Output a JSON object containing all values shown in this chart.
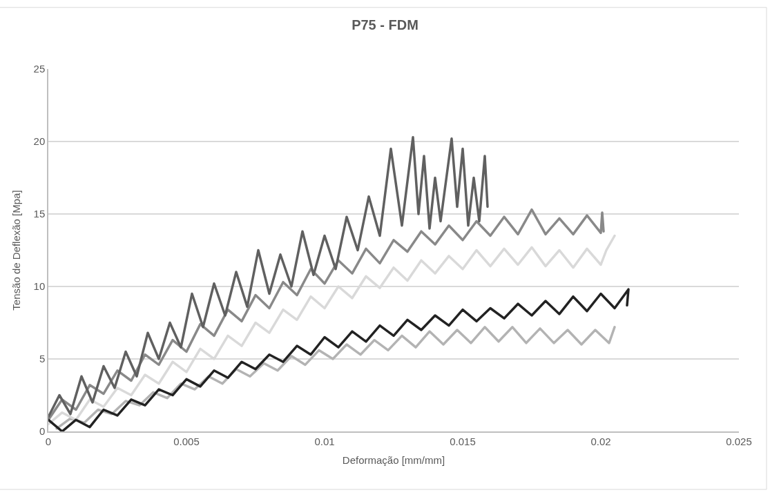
{
  "chart_data": {
    "type": "line",
    "title": "P75 - FDM",
    "xlabel": "Deformação [mm/mm]",
    "ylabel": "Tensão de Deflexão [Mpa]",
    "xlim": [
      0,
      0.025
    ],
    "xticks": [
      0,
      0.005,
      0.01,
      0.015,
      0.02,
      0.025
    ],
    "ylim": [
      0,
      25
    ],
    "yticks": [
      0,
      5,
      10,
      15,
      20,
      25
    ],
    "grid": "y",
    "line_style": "solid",
    "marker": "none",
    "series": [
      {
        "color": "#b3b3b3",
        "x": [
          0.0003,
          0.0008,
          0.0013,
          0.0018,
          0.0023,
          0.0028,
          0.0033,
          0.0038,
          0.0043,
          0.0048,
          0.0053,
          0.0058,
          0.0063,
          0.0068,
          0.0073,
          0.0078,
          0.0083,
          0.0088,
          0.0093,
          0.0098,
          0.0103,
          0.0108,
          0.0113,
          0.0118,
          0.0123,
          0.0128,
          0.0133,
          0.0138,
          0.0143,
          0.0148,
          0.0153,
          0.0158,
          0.0163,
          0.0168,
          0.0173,
          0.0178,
          0.0183,
          0.0188,
          0.0193,
          0.0198,
          0.0203,
          0.0205
        ],
        "values": [
          0.2,
          0.9,
          0.6,
          1.5,
          1.2,
          2.1,
          1.8,
          2.7,
          2.3,
          3.3,
          2.9,
          3.8,
          3.3,
          4.3,
          3.8,
          4.7,
          4.2,
          5.2,
          4.6,
          5.6,
          5.0,
          6.0,
          5.3,
          6.3,
          5.6,
          6.6,
          5.8,
          6.9,
          6.0,
          7.0,
          6.1,
          7.2,
          6.2,
          7.2,
          6.1,
          7.1,
          6.1,
          7.0,
          6.0,
          7.0,
          6.1,
          7.2
        ]
      },
      {
        "color": "#d9d9d9",
        "x": [
          0,
          0.0005,
          0.001,
          0.0015,
          0.002,
          0.0025,
          0.003,
          0.0035,
          0.004,
          0.0045,
          0.005,
          0.0055,
          0.006,
          0.0065,
          0.007,
          0.0075,
          0.008,
          0.0085,
          0.009,
          0.0095,
          0.01,
          0.0105,
          0.011,
          0.0115,
          0.012,
          0.0125,
          0.013,
          0.0135,
          0.014,
          0.0145,
          0.015,
          0.0155,
          0.016,
          0.0165,
          0.017,
          0.0175,
          0.018,
          0.0185,
          0.019,
          0.0195,
          0.02,
          0.0202,
          0.0205
        ],
        "values": [
          0.5,
          1.3,
          0.8,
          2.2,
          1.7,
          3.0,
          2.5,
          3.9,
          3.3,
          4.8,
          4.1,
          5.7,
          5.0,
          6.6,
          5.9,
          7.5,
          6.8,
          8.4,
          7.7,
          9.3,
          8.5,
          10.0,
          9.2,
          10.7,
          9.9,
          11.3,
          10.4,
          11.8,
          10.9,
          12.1,
          11.2,
          12.5,
          11.4,
          12.6,
          11.5,
          12.7,
          11.4,
          12.5,
          11.3,
          12.6,
          11.5,
          12.5,
          13.5
        ]
      },
      {
        "color": "#898989",
        "x": [
          0,
          0.0005,
          0.001,
          0.0015,
          0.002,
          0.0025,
          0.003,
          0.0035,
          0.004,
          0.0045,
          0.005,
          0.0055,
          0.006,
          0.0065,
          0.007,
          0.0075,
          0.008,
          0.0085,
          0.009,
          0.0095,
          0.01,
          0.0105,
          0.011,
          0.0115,
          0.012,
          0.0125,
          0.013,
          0.0135,
          0.014,
          0.0145,
          0.015,
          0.0155,
          0.016,
          0.0165,
          0.017,
          0.0175,
          0.018,
          0.0185,
          0.019,
          0.0195,
          0.02,
          0.02005,
          0.0201
        ],
        "values": [
          0.8,
          2.2,
          1.5,
          3.2,
          2.6,
          4.2,
          3.5,
          5.3,
          4.6,
          6.3,
          5.5,
          7.4,
          6.6,
          8.4,
          7.6,
          9.4,
          8.5,
          10.3,
          9.4,
          11.2,
          10.2,
          11.8,
          10.9,
          12.6,
          11.6,
          13.2,
          12.4,
          13.8,
          12.9,
          14.2,
          13.2,
          14.5,
          13.5,
          14.8,
          13.6,
          15.3,
          13.6,
          14.7,
          13.6,
          14.9,
          13.7,
          15.1,
          13.8
        ]
      },
      {
        "color": "#606060",
        "x": [
          0,
          0.0004,
          0.0008,
          0.0012,
          0.0016,
          0.002,
          0.0024,
          0.0028,
          0.0032,
          0.0036,
          0.004,
          0.0044,
          0.0048,
          0.0052,
          0.0056,
          0.006,
          0.0064,
          0.0068,
          0.0072,
          0.0076,
          0.008,
          0.0084,
          0.0088,
          0.0092,
          0.0096,
          0.01,
          0.0104,
          0.0108,
          0.0112,
          0.0116,
          0.012,
          0.0124,
          0.0128,
          0.0132,
          0.0134,
          0.0136,
          0.0138,
          0.014,
          0.0142,
          0.0146,
          0.0148,
          0.015,
          0.0152,
          0.0154,
          0.0156,
          0.0158,
          0.0159
        ],
        "values": [
          1.0,
          2.5,
          1.2,
          3.8,
          2.0,
          4.5,
          3.0,
          5.5,
          3.8,
          6.8,
          5.0,
          7.5,
          5.8,
          9.5,
          7.2,
          10.2,
          8.0,
          11.0,
          8.6,
          12.5,
          9.5,
          12.2,
          10.0,
          13.8,
          10.8,
          13.5,
          11.2,
          14.8,
          12.5,
          16.2,
          13.5,
          19.5,
          14.2,
          20.3,
          15.0,
          19.0,
          14.0,
          17.5,
          14.5,
          20.2,
          15.5,
          19.5,
          14.2,
          17.5,
          14.5,
          19.0,
          15.5
        ]
      },
      {
        "color": "#222222",
        "x": [
          0,
          0.0005,
          0.001,
          0.0015,
          0.002,
          0.0025,
          0.003,
          0.0035,
          0.004,
          0.0045,
          0.005,
          0.0055,
          0.006,
          0.0065,
          0.007,
          0.0075,
          0.008,
          0.0085,
          0.009,
          0.0095,
          0.01,
          0.0105,
          0.011,
          0.0115,
          0.012,
          0.0125,
          0.013,
          0.0135,
          0.014,
          0.0145,
          0.015,
          0.0155,
          0.016,
          0.0165,
          0.017,
          0.0175,
          0.018,
          0.0185,
          0.019,
          0.0195,
          0.02,
          0.0205,
          0.021,
          0.02095
        ],
        "values": [
          0.8,
          0.0,
          0.8,
          0.3,
          1.5,
          1.1,
          2.2,
          1.8,
          2.9,
          2.5,
          3.6,
          3.1,
          4.2,
          3.7,
          4.8,
          4.3,
          5.3,
          4.8,
          5.9,
          5.3,
          6.5,
          5.8,
          6.9,
          6.2,
          7.3,
          6.6,
          7.7,
          7.0,
          8.0,
          7.3,
          8.4,
          7.6,
          8.5,
          7.8,
          8.8,
          8.0,
          9.0,
          8.1,
          9.3,
          8.3,
          9.5,
          8.5,
          9.8,
          8.7
        ]
      }
    ]
  }
}
